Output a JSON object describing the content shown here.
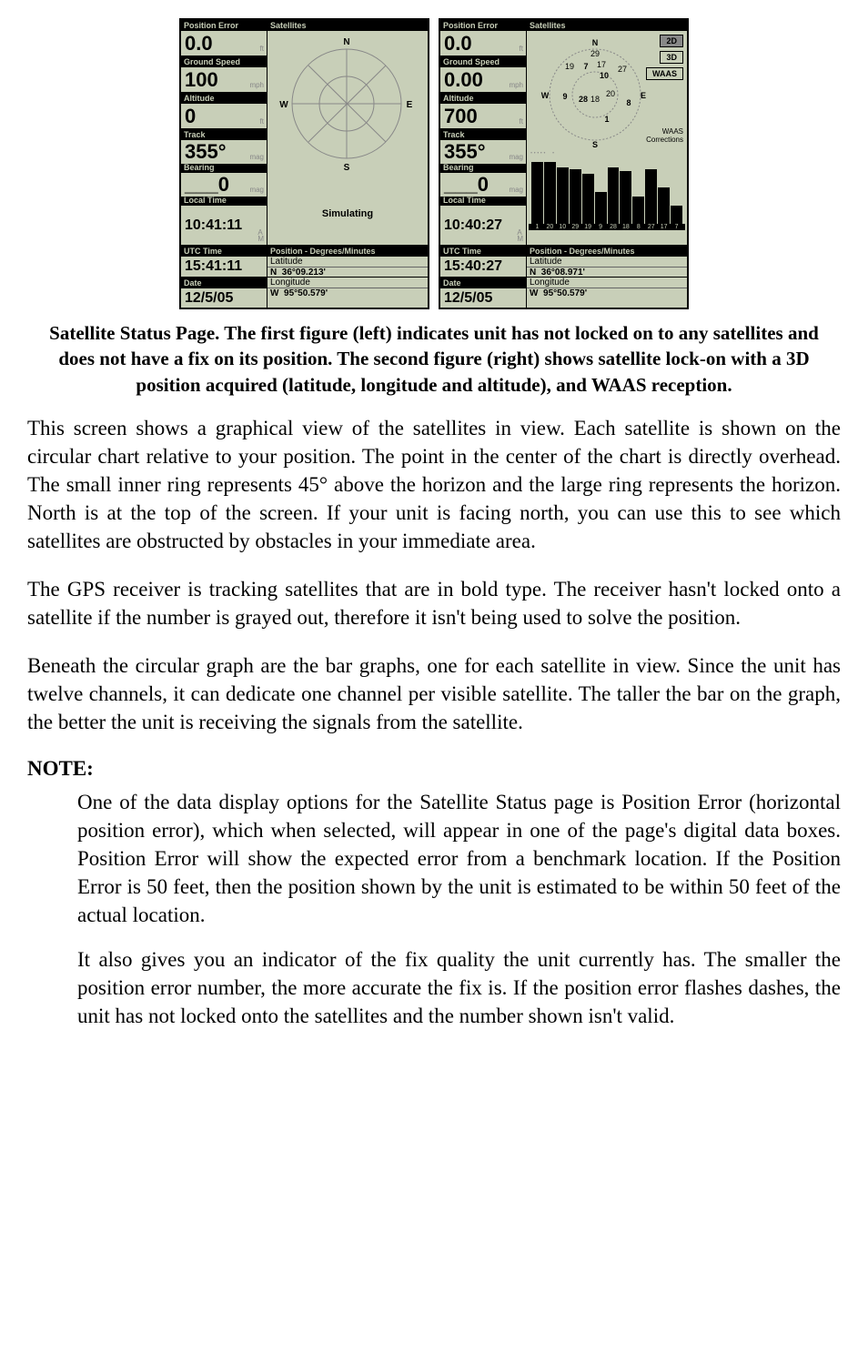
{
  "screens": {
    "left": {
      "position_error": {
        "label": "Position Error",
        "value": "0.0",
        "unit": "ft"
      },
      "ground_speed": {
        "label": "Ground Speed",
        "value": "100",
        "unit": "mph"
      },
      "altitude": {
        "label": "Altitude",
        "value": "0",
        "unit": "ft"
      },
      "track": {
        "label": "Track",
        "value": "355°",
        "unit": "mag"
      },
      "bearing": {
        "label": "Bearing",
        "value": "___0",
        "unit": "mag"
      },
      "local_time": {
        "label": "Local Time",
        "value": "10:41:11",
        "ampm": "A\nM"
      },
      "utc_time": {
        "label": "UTC Time",
        "value": "15:41:11"
      },
      "date": {
        "label": "Date",
        "value": "12/5/05"
      },
      "satellites_label": "Satellites",
      "compass": {
        "n": "N",
        "s": "S",
        "e": "E",
        "w": "W"
      },
      "simulating": "Simulating",
      "pos_header": "Position - Degrees/Minutes",
      "latitude": {
        "label": "Latitude",
        "prefix": "N",
        "value": "36°09.213'"
      },
      "longitude": {
        "label": "Longitude",
        "prefix": "W",
        "value": "95°50.579'"
      }
    },
    "right": {
      "position_error": {
        "label": "Position Error",
        "value": "0.0",
        "unit": "ft"
      },
      "ground_speed": {
        "label": "Ground Speed",
        "value": "0.00",
        "unit": "mph"
      },
      "altitude": {
        "label": "Altitude",
        "value": "700",
        "unit": "ft"
      },
      "track": {
        "label": "Track",
        "value": "355°",
        "unit": "mag"
      },
      "bearing": {
        "label": "Bearing",
        "value": "___0",
        "unit": "mag"
      },
      "local_time": {
        "label": "Local Time",
        "value": "10:40:27",
        "ampm": "A\nM"
      },
      "utc_time": {
        "label": "UTC Time",
        "value": "15:40:27"
      },
      "date": {
        "label": "Date",
        "value": "12/5/05"
      },
      "satellites_label": "Satellites",
      "compass": {
        "n": "N",
        "s": "S",
        "e": "E",
        "w": "W"
      },
      "badges": {
        "d2": "2D",
        "d3": "3D",
        "waas": "WAAS"
      },
      "waas_corr": "WAAS\nCorrections",
      "sat_nums": [
        "29",
        "19",
        "7",
        "17",
        "10",
        "27",
        "9",
        "28",
        "18",
        "20",
        "8",
        "1"
      ],
      "bars": {
        "labels": [
          "1",
          "20",
          "10",
          "29",
          "19",
          "9",
          "28",
          "18",
          "8",
          "27",
          "17",
          "7"
        ],
        "heights": [
          68,
          68,
          62,
          60,
          55,
          35,
          62,
          58,
          30,
          60,
          40,
          20
        ]
      },
      "pos_header": "Position - Degrees/Minutes",
      "latitude": {
        "label": "Latitude",
        "prefix": "N",
        "value": "36°08.971'"
      },
      "longitude": {
        "label": "Longitude",
        "prefix": "W",
        "value": "95°50.579'"
      }
    }
  },
  "caption": "Satellite Status Page. The first figure (left) indicates unit has not locked on to any satellites and does not have a fix on its position. The second figure (right) shows satellite lock-on with a 3D position acquired (latitude, longitude and altitude), and WAAS reception.",
  "para1": "This screen shows a graphical view of the satellites in view. Each satellite is shown on the circular chart relative to your position. The point in the center of the chart is directly overhead. The small inner ring represents 45° above the horizon and the large ring represents the horizon. North is at the top of the screen. If your unit is facing north, you can use this to see which satellites are obstructed by obstacles in your immediate area.",
  "para2": "The GPS receiver is tracking satellites that are in bold type. The receiver hasn't locked onto a satellite if the number is grayed out, therefore it isn't being used to solve the position.",
  "para3": "Beneath the circular graph are the bar graphs, one for each satellite in view. Since the unit has twelve channels, it can dedicate one channel per visible satellite. The taller the bar on the graph, the better the unit is receiving the signals from the satellite.",
  "note_head": "NOTE:",
  "note1": "One of the data display options for the Satellite Status page is Position Error (horizontal position error), which when selected, will appear in one of the page's digital data boxes. Position Error will show the expected error from a benchmark location. If the Position Error is 50 feet, then the position shown by the unit is estimated to be within 50 feet of the actual location.",
  "note2": "It also gives you an indicator of the fix quality the unit currently has. The smaller the position error number, the more accurate the fix is. If the position error flashes dashes, the unit has not locked onto the satellites and the number shown isn't valid."
}
